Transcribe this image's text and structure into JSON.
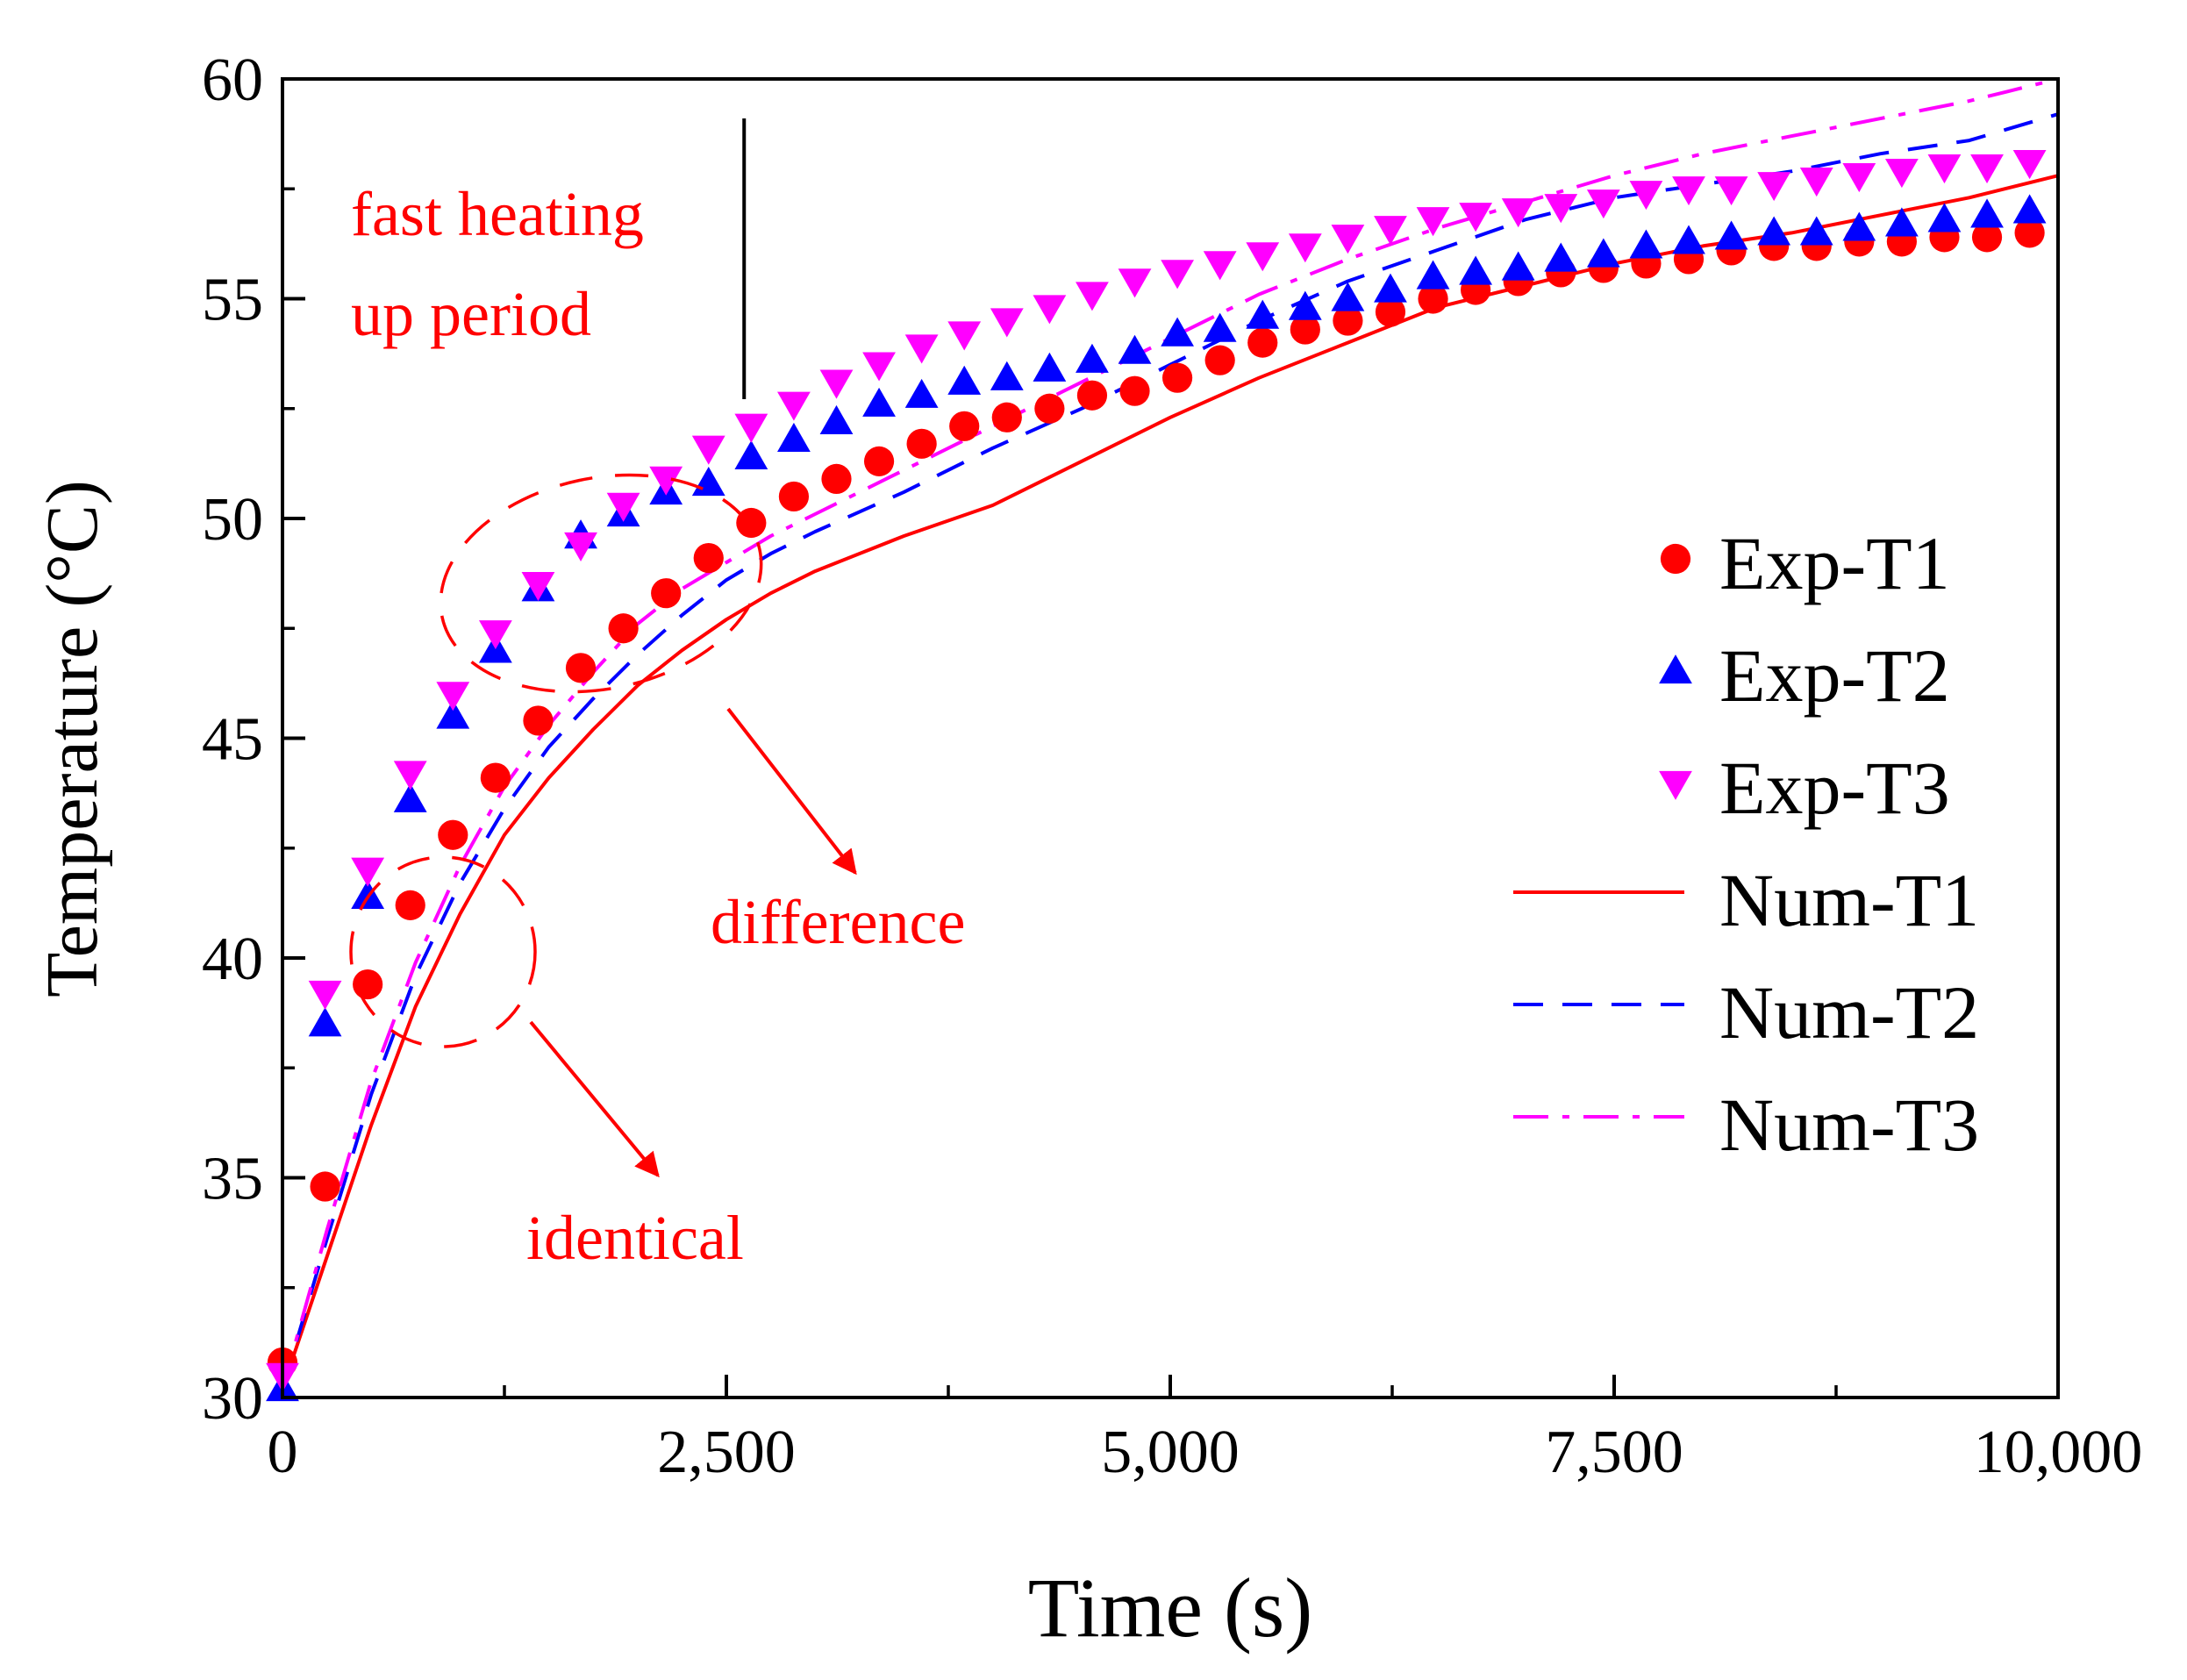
{
  "chart_data": {
    "type": "line",
    "title": "",
    "xlabel": "Time (s)",
    "ylabel": "Temperature (°C)",
    "xlim": [
      0,
      10000
    ],
    "ylim": [
      30,
      60
    ],
    "x_ticks": [
      0,
      2500,
      5000,
      7500,
      10000
    ],
    "x_tick_labels": [
      "0",
      "2,500",
      "5,000",
      "7,500",
      "10,000"
    ],
    "y_ticks": [
      30,
      35,
      40,
      45,
      50,
      55,
      60
    ],
    "y_tick_labels": [
      "30",
      "35",
      "40",
      "45",
      "50",
      "55",
      "60"
    ],
    "grid": false,
    "legend_position": "right",
    "colors": {
      "t1": "#ff0000",
      "t2": "#0000ff",
      "t3": "#ff00ff",
      "annotation": "#ff0000",
      "axis": "#000000"
    },
    "series": [
      {
        "name": "Exp-T1",
        "kind": "marker",
        "marker": "circle",
        "color": "#ff0000",
        "x": [
          0,
          240,
          480,
          720,
          960,
          1200,
          1440,
          1680,
          1920,
          2160,
          2400,
          2640,
          2880,
          3120,
          3360,
          3600,
          3840,
          4080,
          4320,
          4560,
          4800,
          5040,
          5280,
          5520,
          5760,
          6000,
          6240,
          6480,
          6720,
          6960,
          7200,
          7440,
          7680,
          7920,
          8160,
          8400,
          8640,
          8880,
          9120,
          9360,
          9600,
          9840
        ],
        "y": [
          30.8,
          34.8,
          39.4,
          41.2,
          42.8,
          44.1,
          45.4,
          46.6,
          47.5,
          48.3,
          49.1,
          49.9,
          50.5,
          50.9,
          51.3,
          51.7,
          52.1,
          52.3,
          52.5,
          52.8,
          52.9,
          53.2,
          53.6,
          54.0,
          54.3,
          54.5,
          54.7,
          55.0,
          55.2,
          55.4,
          55.6,
          55.7,
          55.8,
          55.9,
          56.1,
          56.2,
          56.2,
          56.3,
          56.3,
          56.4,
          56.4,
          56.5
        ]
      },
      {
        "name": "Exp-T2",
        "kind": "marker",
        "marker": "triangle-up",
        "color": "#0000ff",
        "x": [
          0,
          240,
          480,
          720,
          960,
          1200,
          1440,
          1680,
          1920,
          2160,
          2400,
          2640,
          2880,
          3120,
          3360,
          3600,
          3840,
          4080,
          4320,
          4560,
          4800,
          5040,
          5280,
          5520,
          5760,
          6000,
          6240,
          6480,
          6720,
          6960,
          7200,
          7440,
          7680,
          7920,
          8160,
          8400,
          8640,
          8880,
          9120,
          9360,
          9600,
          9840
        ],
        "y": [
          30.2,
          38.5,
          41.4,
          43.6,
          45.5,
          47.0,
          48.4,
          49.6,
          50.1,
          50.6,
          50.8,
          51.4,
          51.8,
          52.2,
          52.6,
          52.8,
          53.1,
          53.2,
          53.4,
          53.6,
          53.8,
          54.2,
          54.3,
          54.6,
          54.8,
          55.0,
          55.2,
          55.5,
          55.6,
          55.7,
          55.9,
          56.0,
          56.2,
          56.3,
          56.4,
          56.5,
          56.5,
          56.6,
          56.7,
          56.8,
          56.9,
          57.0
        ]
      },
      {
        "name": "Exp-T3",
        "kind": "marker",
        "marker": "triangle-down",
        "color": "#ff00ff",
        "x": [
          0,
          240,
          480,
          720,
          960,
          1200,
          1440,
          1680,
          1920,
          2160,
          2400,
          2640,
          2880,
          3120,
          3360,
          3600,
          3840,
          4080,
          4320,
          4560,
          4800,
          5040,
          5280,
          5520,
          5760,
          6000,
          6240,
          6480,
          6720,
          6960,
          7200,
          7440,
          7680,
          7920,
          8160,
          8400,
          8640,
          8880,
          9120,
          9360,
          9600,
          9840
        ],
        "y": [
          30.5,
          39.2,
          42.0,
          44.2,
          46.0,
          47.4,
          48.5,
          49.4,
          50.3,
          50.9,
          51.6,
          52.1,
          52.6,
          53.1,
          53.5,
          53.9,
          54.2,
          54.5,
          54.8,
          55.1,
          55.4,
          55.6,
          55.8,
          56.0,
          56.2,
          56.4,
          56.6,
          56.8,
          56.9,
          57.0,
          57.1,
          57.2,
          57.4,
          57.5,
          57.5,
          57.6,
          57.7,
          57.8,
          57.9,
          58.0,
          58.0,
          58.1
        ]
      },
      {
        "name": "Num-T1",
        "kind": "line",
        "dash": "solid",
        "color": "#ff0000",
        "x": [
          0,
          250,
          500,
          750,
          1000,
          1250,
          1500,
          1750,
          2000,
          2250,
          2500,
          2750,
          3000,
          3500,
          4000,
          4500,
          5000,
          5500,
          6000,
          6500,
          7000,
          7500,
          8000,
          8500,
          9000,
          9500,
          10000
        ],
        "y": [
          30.2,
          33.2,
          36.2,
          38.9,
          41.0,
          42.8,
          44.1,
          45.2,
          46.2,
          47.0,
          47.7,
          48.3,
          48.8,
          49.6,
          50.3,
          51.3,
          52.3,
          53.2,
          54.0,
          54.8,
          55.3,
          55.8,
          56.2,
          56.5,
          56.9,
          57.3,
          57.8
        ]
      },
      {
        "name": "Num-T2",
        "kind": "line",
        "dash": "dashed",
        "color": "#0000ff",
        "x": [
          0,
          250,
          500,
          750,
          1000,
          1250,
          1500,
          1750,
          2000,
          2250,
          2500,
          2750,
          3000,
          3500,
          4000,
          4500,
          5000,
          5500,
          6000,
          6500,
          7000,
          7500,
          8000,
          8500,
          9000,
          9500,
          10000
        ],
        "y": [
          30.2,
          33.6,
          36.9,
          39.6,
          41.7,
          43.4,
          44.8,
          45.9,
          46.9,
          47.8,
          48.6,
          49.2,
          49.7,
          50.6,
          51.6,
          52.5,
          53.5,
          54.5,
          55.4,
          56.1,
          56.8,
          57.3,
          57.6,
          57.9,
          58.3,
          58.6,
          59.2
        ]
      },
      {
        "name": "Num-T3",
        "kind": "line",
        "dash": "dashdot",
        "color": "#ff00ff",
        "x": [
          0,
          250,
          500,
          750,
          1000,
          1250,
          1500,
          1750,
          2000,
          2250,
          2500,
          2750,
          3000,
          3500,
          4000,
          4500,
          5000,
          5500,
          6000,
          6500,
          7000,
          7500,
          8000,
          8500,
          9000,
          9500,
          10000
        ],
        "y": [
          30.2,
          33.8,
          37.2,
          39.9,
          42.1,
          43.9,
          45.3,
          46.5,
          47.6,
          48.4,
          49.0,
          49.6,
          50.1,
          51.1,
          52.1,
          53.1,
          54.1,
          55.1,
          55.9,
          56.6,
          57.2,
          57.8,
          58.3,
          58.7,
          59.1,
          59.5,
          60.0
        ]
      }
    ],
    "annotations": {
      "fast_heating_line1": "fast heating",
      "fast_heating_line2": "up period",
      "fast_heating_marker_x": 2600,
      "difference": "difference",
      "identical": "identical"
    }
  }
}
